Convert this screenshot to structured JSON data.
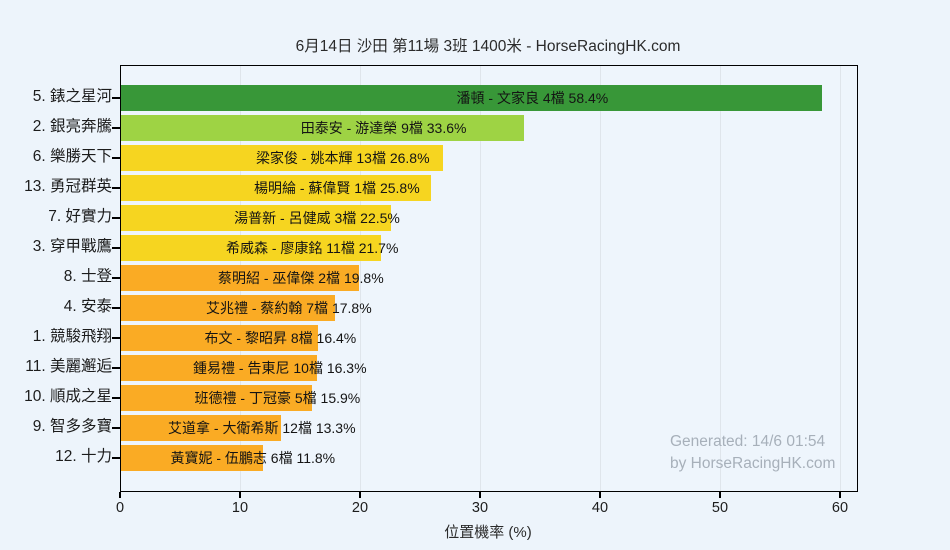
{
  "title": "6月14日 沙田 第11場 3班 1400米 - HorseRacingHK.com",
  "watermark": {
    "line1": "Generated: 14/6 01:54",
    "line2": "by HorseRacingHK.com"
  },
  "colors": {
    "background": "#edf4fb",
    "plot_background": "#eef5fc",
    "grid": "#dfe5eb",
    "axis": "#000000",
    "watermark_text": "#a7b0ba"
  },
  "chart_data": {
    "type": "bar",
    "orientation": "horizontal",
    "title": "6月14日 沙田 第11場 3班 1400米 - HorseRacingHK.com",
    "xlabel": "位置機率 (%)",
    "ylabel": "",
    "xlim": [
      0,
      61.33
    ],
    "xticks": [
      0,
      10,
      20,
      30,
      40,
      50,
      60
    ],
    "grid": true,
    "categories": [
      "5. 錶之星河",
      "2. 銀亮奔騰",
      "6. 樂勝天下",
      "13. 勇冠群英",
      "7. 好實力",
      "3. 穿甲戰鷹",
      "8. 士登",
      "4. 安泰",
      "1. 競駿飛翔",
      "11. 美麗邂逅",
      "10. 順成之星",
      "9. 智多多寶",
      "12. 十力"
    ],
    "values": [
      58.4,
      33.6,
      26.8,
      25.8,
      22.5,
      21.7,
      19.8,
      17.8,
      16.4,
      16.3,
      15.9,
      13.3,
      11.8
    ],
    "bar_labels": [
      "潘頓 - 文家良 4檔  58.4%",
      "田泰安 - 游達榮 9檔  33.6%",
      "梁家俊 - 姚本輝 13檔  26.8%",
      "楊明綸 - 蘇偉賢 1檔  25.8%",
      "湯普新 - 呂健威 3檔  22.5%",
      "希威森 - 廖康銘 11檔  21.7%",
      "蔡明紹 - 巫偉傑 2檔  19.8%",
      "艾兆禮 - 蔡約翰 7檔  17.8%",
      "布文 - 黎昭昇 8檔  16.4%",
      "鍾易禮 - 告東尼 10檔  16.3%",
      "班德禮 - 丁冠豪 5檔  15.9%",
      "艾道拿 - 大衛希斯 12檔  13.3%",
      "黃寶妮 - 伍鵬志 6檔  11.8%"
    ],
    "bar_colors": [
      "#389738",
      "#9ed344",
      "#f6d520",
      "#f6d520",
      "#f6d520",
      "#f6d520",
      "#faab24",
      "#faab24",
      "#faab24",
      "#faab24",
      "#faab24",
      "#faab24",
      "#faab24"
    ]
  }
}
